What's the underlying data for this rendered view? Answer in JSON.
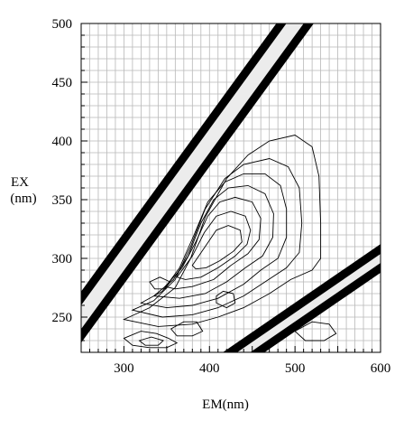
{
  "chart_data": {
    "type": "contour",
    "title": "",
    "xlabel": "EM(nm)",
    "ylabel_lines": [
      "EX",
      "(nm)"
    ],
    "xlim": [
      250,
      600
    ],
    "ylim": [
      220,
      500
    ],
    "x_ticks": [
      300,
      400,
      500,
      600
    ],
    "y_ticks": [
      250,
      300,
      350,
      400,
      450,
      500
    ],
    "x_minor_step": 10,
    "y_minor_step": 10,
    "grid": true,
    "scatter_bands": [
      {
        "name": "",
        "ex_start": 220,
        "ex_end": 500,
        "offset_em": 0,
        "half_width_em": 16
      },
      {
        "name": "",
        "ex_start": 220,
        "ex_end": 300,
        "offset_em": 0,
        "scale": 2,
        "half_width_em": 16
      }
    ],
    "contours": [
      {
        "level": 1,
        "points": [
          [
            300,
            248
          ],
          [
            330,
            258
          ],
          [
            360,
            275
          ],
          [
            378,
            300
          ],
          [
            395,
            335
          ],
          [
            420,
            368
          ],
          [
            445,
            388
          ],
          [
            470,
            400
          ],
          [
            500,
            405
          ],
          [
            520,
            395
          ],
          [
            528,
            370
          ],
          [
            530,
            330
          ],
          [
            530,
            300
          ],
          [
            520,
            290
          ],
          [
            495,
            282
          ],
          [
            470,
            270
          ],
          [
            440,
            258
          ],
          [
            410,
            250
          ],
          [
            380,
            244
          ],
          [
            340,
            242
          ],
          [
            300,
            248
          ]
        ]
      },
      {
        "level": 2,
        "points": [
          [
            310,
            256
          ],
          [
            335,
            264
          ],
          [
            360,
            282
          ],
          [
            378,
            310
          ],
          [
            395,
            342
          ],
          [
            418,
            368
          ],
          [
            440,
            380
          ],
          [
            470,
            385
          ],
          [
            492,
            378
          ],
          [
            505,
            360
          ],
          [
            508,
            330
          ],
          [
            505,
            305
          ],
          [
            490,
            292
          ],
          [
            465,
            280
          ],
          [
            440,
            268
          ],
          [
            410,
            258
          ],
          [
            380,
            252
          ],
          [
            345,
            250
          ],
          [
            310,
            256
          ]
        ]
      },
      {
        "level": 3,
        "points": [
          [
            320,
            262
          ],
          [
            345,
            272
          ],
          [
            365,
            292
          ],
          [
            382,
            320
          ],
          [
            398,
            348
          ],
          [
            418,
            365
          ],
          [
            440,
            372
          ],
          [
            465,
            372
          ],
          [
            483,
            362
          ],
          [
            490,
            342
          ],
          [
            490,
            318
          ],
          [
            480,
            300
          ],
          [
            460,
            290
          ],
          [
            440,
            278
          ],
          [
            410,
            266
          ],
          [
            380,
            260
          ],
          [
            350,
            258
          ],
          [
            320,
            262
          ]
        ]
      },
      {
        "level": 4,
        "points": [
          [
            335,
            268
          ],
          [
            358,
            282
          ],
          [
            375,
            302
          ],
          [
            390,
            330
          ],
          [
            405,
            350
          ],
          [
            422,
            360
          ],
          [
            445,
            362
          ],
          [
            465,
            355
          ],
          [
            475,
            338
          ],
          [
            474,
            318
          ],
          [
            462,
            302
          ],
          [
            442,
            292
          ],
          [
            420,
            280
          ],
          [
            395,
            270
          ],
          [
            365,
            266
          ],
          [
            335,
            268
          ]
        ]
      },
      {
        "level": 5,
        "points": [
          [
            348,
            276
          ],
          [
            368,
            292
          ],
          [
            384,
            314
          ],
          [
            398,
            336
          ],
          [
            412,
            348
          ],
          [
            430,
            352
          ],
          [
            450,
            348
          ],
          [
            460,
            334
          ],
          [
            458,
            316
          ],
          [
            445,
            304
          ],
          [
            425,
            294
          ],
          [
            405,
            282
          ],
          [
            380,
            276
          ],
          [
            360,
            274
          ],
          [
            348,
            276
          ]
        ]
      },
      {
        "level": 6,
        "points": [
          [
            362,
            284
          ],
          [
            380,
            302
          ],
          [
            394,
            322
          ],
          [
            408,
            336
          ],
          [
            425,
            340
          ],
          [
            442,
            336
          ],
          [
            448,
            324
          ],
          [
            444,
            312
          ],
          [
            430,
            302
          ],
          [
            410,
            292
          ],
          [
            390,
            284
          ],
          [
            372,
            282
          ],
          [
            362,
            284
          ]
        ]
      },
      {
        "level": 7,
        "points": [
          [
            380,
            294
          ],
          [
            395,
            310
          ],
          [
            408,
            324
          ],
          [
            422,
            328
          ],
          [
            436,
            324
          ],
          [
            438,
            314
          ],
          [
            428,
            306
          ],
          [
            412,
            298
          ],
          [
            396,
            292
          ],
          [
            384,
            291
          ],
          [
            380,
            294
          ]
        ]
      },
      {
        "level": 8,
        "points": [
          [
            408,
            262
          ],
          [
            420,
            258
          ],
          [
            430,
            262
          ],
          [
            428,
            270
          ],
          [
            416,
            272
          ],
          [
            408,
            268
          ],
          [
            408,
            262
          ]
        ]
      },
      {
        "level": 9,
        "points": [
          [
            300,
            232
          ],
          [
            320,
            238
          ],
          [
            338,
            236
          ],
          [
            352,
            232
          ],
          [
            362,
            228
          ],
          [
            350,
            224
          ],
          [
            330,
            224
          ],
          [
            310,
            226
          ],
          [
            300,
            232
          ]
        ]
      },
      {
        "level": 10,
        "points": [
          [
            318,
            230
          ],
          [
            332,
            233
          ],
          [
            346,
            230
          ],
          [
            340,
            226
          ],
          [
            325,
            226
          ],
          [
            318,
            230
          ]
        ]
      },
      {
        "level": 11,
        "points": [
          [
            330,
            280
          ],
          [
            342,
            284
          ],
          [
            354,
            280
          ],
          [
            348,
            274
          ],
          [
            336,
            274
          ],
          [
            330,
            280
          ]
        ]
      },
      {
        "level": 12,
        "points": [
          [
            355,
            240
          ],
          [
            370,
            246
          ],
          [
            385,
            246
          ],
          [
            392,
            238
          ],
          [
            380,
            234
          ],
          [
            362,
            234
          ],
          [
            355,
            240
          ]
        ]
      },
      {
        "level": 13,
        "points": [
          [
            500,
            238
          ],
          [
            520,
            246
          ],
          [
            540,
            244
          ],
          [
            548,
            236
          ],
          [
            534,
            230
          ],
          [
            512,
            230
          ],
          [
            500,
            238
          ]
        ]
      }
    ]
  }
}
